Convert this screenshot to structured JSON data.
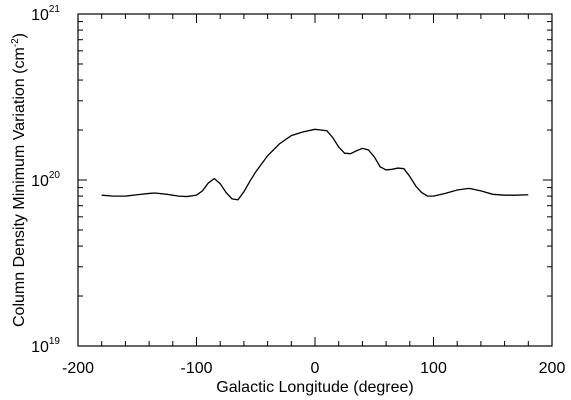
{
  "chart_data": {
    "type": "line",
    "title": "",
    "xlabel": "Galactic Longitude (degree)",
    "ylabel": "Column Density Minimum Variation (cm",
    "ylabel_unit_exp": "-2",
    "ylabel_suffix": ")",
    "xlim": [
      -200,
      200
    ],
    "ylim": [
      1e+19,
      1e+21
    ],
    "yscale": "log",
    "grid": false,
    "x_ticks": [
      -200,
      -100,
      0,
      100,
      200
    ],
    "x_tick_labels": [
      "-200",
      "-100",
      "0",
      "100",
      "200"
    ],
    "y_ticks": [
      1e+19,
      1e+20,
      1e+21
    ],
    "y_tick_labels": [
      {
        "base": "10",
        "exp": "19"
      },
      {
        "base": "10",
        "exp": "20"
      },
      {
        "base": "10",
        "exp": "21"
      }
    ],
    "series": [
      {
        "color": "#000000",
        "x": [
          -180,
          -170,
          -160,
          -150,
          -140,
          -135,
          -125,
          -115,
          -108,
          -100,
          -95,
          -90,
          -85,
          -80,
          -75,
          -70,
          -65,
          -60,
          -55,
          -50,
          -40,
          -30,
          -20,
          -10,
          0,
          5,
          10,
          15,
          20,
          25,
          30,
          35,
          40,
          45,
          50,
          55,
          60,
          65,
          70,
          75,
          80,
          85,
          90,
          95,
          100,
          110,
          120,
          130,
          140,
          150,
          160,
          170,
          180
        ],
        "y": [
          8.1e+19,
          8e+19,
          8e+19,
          8.15e+19,
          8.3e+19,
          8.35e+19,
          8.2e+19,
          8e+19,
          7.95e+19,
          8.1e+19,
          8.6e+19,
          9.6e+19,
          1.02e+20,
          9.5e+19,
          8.4e+19,
          7.7e+19,
          7.6e+19,
          8.5e+19,
          9.8e+19,
          1.12e+20,
          1.4e+20,
          1.65e+20,
          1.85e+20,
          1.95e+20,
          2.02e+20,
          2e+20,
          1.98e+20,
          1.8e+20,
          1.58e+20,
          1.45e+20,
          1.44e+20,
          1.5e+20,
          1.55e+20,
          1.52e+20,
          1.38e+20,
          1.2e+20,
          1.15e+20,
          1.16e+20,
          1.18e+20,
          1.17e+20,
          1.05e+20,
          9.2e+19,
          8.4e+19,
          8e+19,
          8e+19,
          8.3e+19,
          8.7e+19,
          8.9e+19,
          8.6e+19,
          8.2e+19,
          8.1e+19,
          8.1e+19,
          8.15e+19
        ]
      }
    ]
  }
}
